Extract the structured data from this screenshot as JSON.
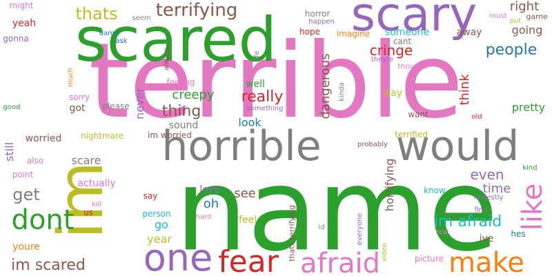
{
  "words": [
    {
      "text": "terrible",
      "color": "#e377c2",
      "rot": 0
    },
    {
      "text": "name",
      "color": "#2ca02c",
      "rot": 0
    },
    {
      "text": "scared",
      "color": "#2ca02c",
      "rot": 0
    },
    {
      "text": "scary",
      "color": "#9467bd",
      "rot": 0
    },
    {
      "text": "im",
      "color": "#bcbd22",
      "rot": 90
    },
    {
      "text": "horrible",
      "color": "#7f7f7f",
      "rot": 0
    },
    {
      "text": "would",
      "color": "#7f7f7f",
      "rot": 0
    },
    {
      "text": "one",
      "color": "#9467bd",
      "rot": 0
    },
    {
      "text": "fear",
      "color": "#d62728",
      "rot": 0
    },
    {
      "text": "afraid",
      "color": "#e377c2",
      "rot": 0
    },
    {
      "text": "make",
      "color": "#ff7f0e",
      "rot": 0
    },
    {
      "text": "like",
      "color": "#e377c2",
      "rot": 90
    },
    {
      "text": "dont",
      "color": "#2ca02c",
      "rot": 0
    },
    {
      "text": "terrifying",
      "color": "#8c564b",
      "rot": 0
    },
    {
      "text": "thats",
      "color": "#bcbd22",
      "rot": 0
    },
    {
      "text": "im scared",
      "color": "#8c564b",
      "rot": 0
    },
    {
      "text": "people",
      "color": "#1f77b4",
      "rot": 0
    },
    {
      "text": "really",
      "color": "#d62728",
      "rot": 0
    },
    {
      "text": "cringe",
      "color": "#d62728",
      "rot": 0
    },
    {
      "text": "im afraid",
      "color": "#17becf",
      "rot": 0
    },
    {
      "text": "thing",
      "color": "#8c564b",
      "rot": 0
    },
    {
      "text": "get",
      "color": "#7f7f7f",
      "rot": 0
    },
    {
      "text": "right",
      "color": "#8c564b",
      "rot": 0
    },
    {
      "text": "going",
      "color": "#8c564b",
      "rot": 0
    },
    {
      "text": "dangerous",
      "color": "#8c564b",
      "rot": 90
    },
    {
      "text": "creepy",
      "color": "#2ca02c",
      "rot": 0
    },
    {
      "text": "even",
      "color": "#9467bd",
      "rot": 0
    },
    {
      "text": "time",
      "color": "#9467bd",
      "rot": 0
    },
    {
      "text": "think",
      "color": "#d62728",
      "rot": 90
    },
    {
      "text": "pretty",
      "color": "#2ca02c",
      "rot": 0
    },
    {
      "text": "someone",
      "color": "#17becf",
      "rot": 0
    },
    {
      "text": "away",
      "color": "#8c564b",
      "rot": 0
    },
    {
      "text": "well",
      "color": "#2ca02c",
      "rot": 0
    },
    {
      "text": "look",
      "color": "#1f77b4",
      "rot": 0
    },
    {
      "text": "see",
      "color": "#8c564b",
      "rot": 0
    },
    {
      "text": "oh",
      "color": "#1f77b4",
      "rot": 0
    },
    {
      "text": "love",
      "color": "#9467bd",
      "rot": 0
    },
    {
      "text": "go",
      "color": "#17becf",
      "rot": 0
    },
    {
      "text": "year",
      "color": "#bcbd22",
      "rot": 0
    },
    {
      "text": "feel",
      "color": "#bcbd22",
      "rot": 0
    },
    {
      "text": "horrifying",
      "color": "#8c564b",
      "rot": 90
    },
    {
      "text": "scare",
      "color": "#7f7f7f",
      "rot": 0
    },
    {
      "text": "sound",
      "color": "#7f7f7f",
      "rot": 0
    },
    {
      "text": "never",
      "color": "#9467bd",
      "rot": 90
    },
    {
      "text": "got",
      "color": "#8c564b",
      "rot": 0
    },
    {
      "text": "still",
      "color": "#9467bd",
      "rot": 90
    },
    {
      "text": "worried",
      "color": "#8c564b",
      "rot": 0
    },
    {
      "text": "actually",
      "color": "#e377c2",
      "rot": 0
    },
    {
      "text": "ive",
      "color": "#8c564b",
      "rot": 0
    },
    {
      "text": "youre",
      "color": "#ff7f0e",
      "rot": 0
    },
    {
      "text": "way",
      "color": "#bcbd22",
      "rot": 0
    },
    {
      "text": "terrified",
      "color": "#bcbd22",
      "rot": 0
    },
    {
      "text": "want",
      "color": "#8c564b",
      "rot": 0
    },
    {
      "text": "nightmare",
      "color": "#bcbd22",
      "rot": 0
    },
    {
      "text": "im worried",
      "color": "#8c564b",
      "rot": 0
    },
    {
      "text": "feeling",
      "color": "#e377c2",
      "rot": 0
    },
    {
      "text": "sorry",
      "color": "#e377c2",
      "rot": 0
    },
    {
      "text": "please",
      "color": "#7f7f7f",
      "rot": 0
    },
    {
      "text": "yeah",
      "color": "#d62728",
      "rot": 0
    },
    {
      "text": "gonna",
      "color": "#9467bd",
      "rot": 0
    },
    {
      "text": "might",
      "color": "#e377c2",
      "rot": 0
    },
    {
      "text": "hope",
      "color": "#d62728",
      "rot": 0
    },
    {
      "text": "imagine",
      "color": "#ff7f0e",
      "rot": 0
    },
    {
      "text": "horror",
      "color": "#7f7f7f",
      "rot": 0
    },
    {
      "text": "happen",
      "color": "#9467bd",
      "rot": 0
    },
    {
      "text": "cant",
      "color": "#7f7f7f",
      "rot": 0
    },
    {
      "text": "game",
      "color": "#8c564b",
      "rot": 0
    },
    {
      "text": "must",
      "color": "#e377c2",
      "rot": 0
    },
    {
      "text": "put",
      "color": "#bcbd22",
      "rot": 0
    },
    {
      "text": "seem",
      "color": "#7f7f7f",
      "rot": 0
    },
    {
      "text": "damn",
      "color": "#1f77b4",
      "rot": 0
    },
    {
      "text": "ask",
      "color": "#1f77b4",
      "rot": 0
    },
    {
      "text": "always",
      "color": "#8c564b",
      "rot": 90
    },
    {
      "text": "life",
      "color": "#7f7f7f",
      "rot": 90
    },
    {
      "text": "theyre",
      "color": "#9467bd",
      "rot": 0
    },
    {
      "text": "thought",
      "color": "#e377c2",
      "rot": 0
    },
    {
      "text": "kinda",
      "color": "#7f7f7f",
      "rot": 90
    },
    {
      "text": "old",
      "color": "#d62728",
      "rot": 0
    },
    {
      "text": "much",
      "color": "#ff7f0e",
      "rot": 90
    },
    {
      "text": "good",
      "color": "#2ca02c",
      "rot": 0
    },
    {
      "text": "something",
      "color": "#9467bd",
      "rot": 0
    },
    {
      "text": "probably",
      "color": "#8c564b",
      "rot": 0
    },
    {
      "text": "kind",
      "color": "#2ca02c",
      "rot": 0
    },
    {
      "text": "know",
      "color": "#17becf",
      "rot": 0
    },
    {
      "text": "honestly",
      "color": "#9467bd",
      "rot": 0
    },
    {
      "text": "find",
      "color": "#9467bd",
      "rot": 0
    },
    {
      "text": "real",
      "color": "#e377c2",
      "rot": 0
    },
    {
      "text": "hes",
      "color": "#1f77b4",
      "rot": 0
    },
    {
      "text": "video",
      "color": "#bcbd22",
      "rot": 90
    },
    {
      "text": "picture",
      "color": "#e377c2",
      "rot": 0
    },
    {
      "text": "everyone",
      "color": "#9467bd",
      "rot": 90
    },
    {
      "text": "id",
      "color": "#7f7f7f",
      "rot": 0
    },
    {
      "text": "thats terrifying",
      "color": "#8c564b",
      "rot": 90
    },
    {
      "text": "hard",
      "color": "#e377c2",
      "rot": 0
    },
    {
      "text": "person",
      "color": "#17becf",
      "rot": 0
    },
    {
      "text": "say",
      "color": "#d62728",
      "rot": 0
    },
    {
      "text": "kill",
      "color": "#e377c2",
      "rot": 0
    },
    {
      "text": "us",
      "color": "#d62728",
      "rot": 0
    },
    {
      "text": "point",
      "color": "#e377c2",
      "rot": 0
    },
    {
      "text": "also",
      "color": "#e377c2",
      "rot": 0
    }
  ]
}
